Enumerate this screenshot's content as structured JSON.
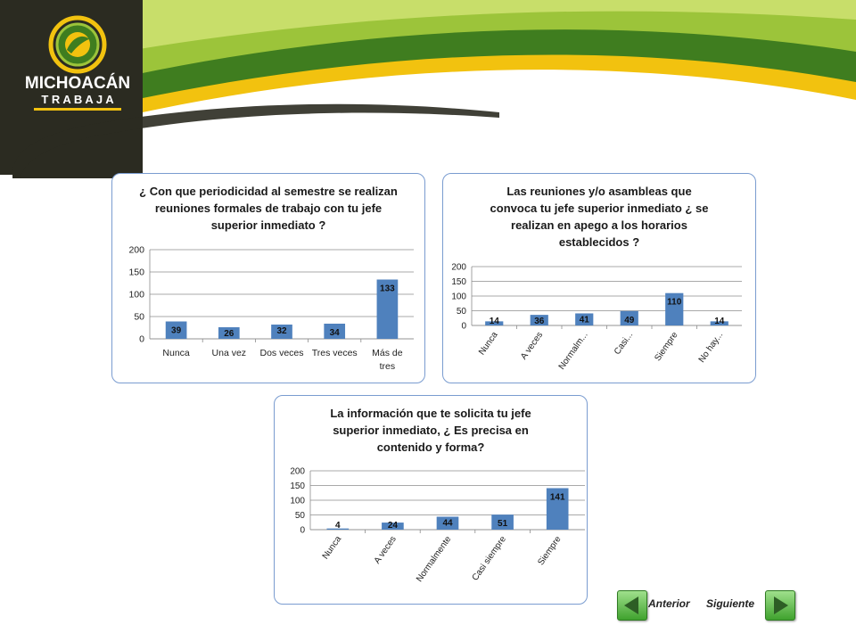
{
  "brand": {
    "line1": "MICHOACÁN",
    "line2": "T R A B A J A",
    "colors": {
      "dark": "#2b2b21",
      "green": "#3f7d1f",
      "yellow": "#f2c20f",
      "lime": "#9cc43a"
    }
  },
  "navigation": {
    "prev_label": "Anterior",
    "next_label": "Siguiente",
    "prev_icon": "arrow-left-icon",
    "next_icon": "arrow-right-icon"
  },
  "chart_data": [
    {
      "type": "bar",
      "title": "¿ Con que periodicidad al semestre se realizan reuniones formales de trabajo con tu jefe superior inmediato ?",
      "categories": [
        "Nunca",
        "Una vez",
        "Dos veces",
        "Tres veces",
        "Más de tres"
      ],
      "values": [
        39,
        26,
        32,
        34,
        133
      ],
      "ylim": [
        0,
        200
      ],
      "yticks": [
        0,
        50,
        100,
        150,
        200
      ],
      "color": "#4f81bd",
      "grid": true,
      "legend": false
    },
    {
      "type": "bar",
      "title": "Las reuniones y/o asambleas que convoca tu jefe superior inmediato ¿ se realizan en apego a los horarios establecidos ?",
      "categories": [
        "Nunca",
        "A veces",
        "Normalm...",
        "Casi...",
        "Siempre",
        "No hay..."
      ],
      "values": [
        14,
        36,
        41,
        49,
        110,
        14
      ],
      "ylim": [
        0,
        200
      ],
      "yticks": [
        0,
        50,
        100,
        150,
        200
      ],
      "color": "#4f81bd",
      "grid": true,
      "legend": false
    },
    {
      "type": "bar",
      "title": "La información que te solicita tu jefe superior inmediato, ¿ Es precisa en contenido y forma?",
      "categories": [
        "Nunca",
        "A veces",
        "Normalmente",
        "Casi siempre",
        "Siempre"
      ],
      "values": [
        4,
        24,
        44,
        51,
        141
      ],
      "ylim": [
        0,
        200
      ],
      "yticks": [
        0,
        50,
        100,
        150,
        200
      ],
      "color": "#4f81bd",
      "grid": true,
      "legend": false
    }
  ]
}
